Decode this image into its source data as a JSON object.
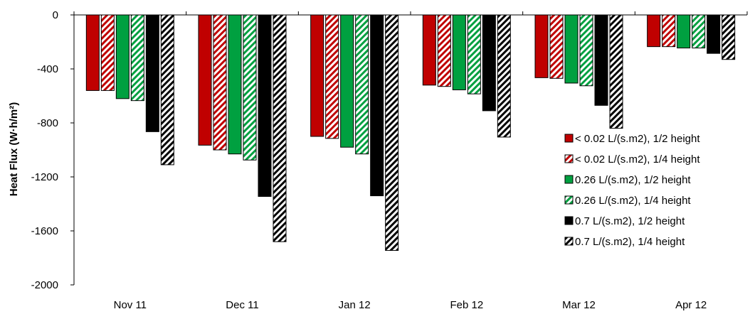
{
  "chart_data": {
    "type": "bar",
    "ylabel": "Heat Flux (W·h/m²)",
    "ylim": [
      -2000,
      0
    ],
    "yticks": [
      0,
      -400,
      -800,
      -1200,
      -1600,
      -2000
    ],
    "ytick_labels": [
      "0",
      "-400",
      "-800",
      "-1200",
      "-1600",
      "-2000"
    ],
    "categories": [
      "Nov 11",
      "Dec 11",
      "Jan 12",
      "Feb 12",
      "Mar 12",
      "Apr 12"
    ],
    "legend_position": "right",
    "series": [
      {
        "name": "< 0.02 L/(s.m2), 1/2 height",
        "color": "#c00000",
        "hatched": false,
        "values": [
          -560,
          -965,
          -900,
          -520,
          -465,
          -235
        ]
      },
      {
        "name": "< 0.02 L/(s.m2), 1/4 height",
        "color": "#c00000",
        "hatched": true,
        "values": [
          -560,
          -1000,
          -915,
          -530,
          -470,
          -235
        ]
      },
      {
        "name": "0.26 L/(s.m2), 1/2 height",
        "color": "#00a040",
        "hatched": false,
        "values": [
          -620,
          -1030,
          -980,
          -555,
          -505,
          -245
        ]
      },
      {
        "name": "0.26 L/(s.m2), 1/4 height",
        "color": "#00a040",
        "hatched": true,
        "values": [
          -635,
          -1075,
          -1030,
          -585,
          -525,
          -245
        ]
      },
      {
        "name": "0.7 L/(s.m2), 1/2 height",
        "color": "#000000",
        "hatched": false,
        "values": [
          -865,
          -1345,
          -1340,
          -710,
          -670,
          -285
        ]
      },
      {
        "name": "0.7 L/(s.m2), 1/4 height",
        "color": "#000000",
        "hatched": true,
        "values": [
          -1110,
          -1680,
          -1745,
          -905,
          -840,
          -330
        ]
      }
    ]
  }
}
